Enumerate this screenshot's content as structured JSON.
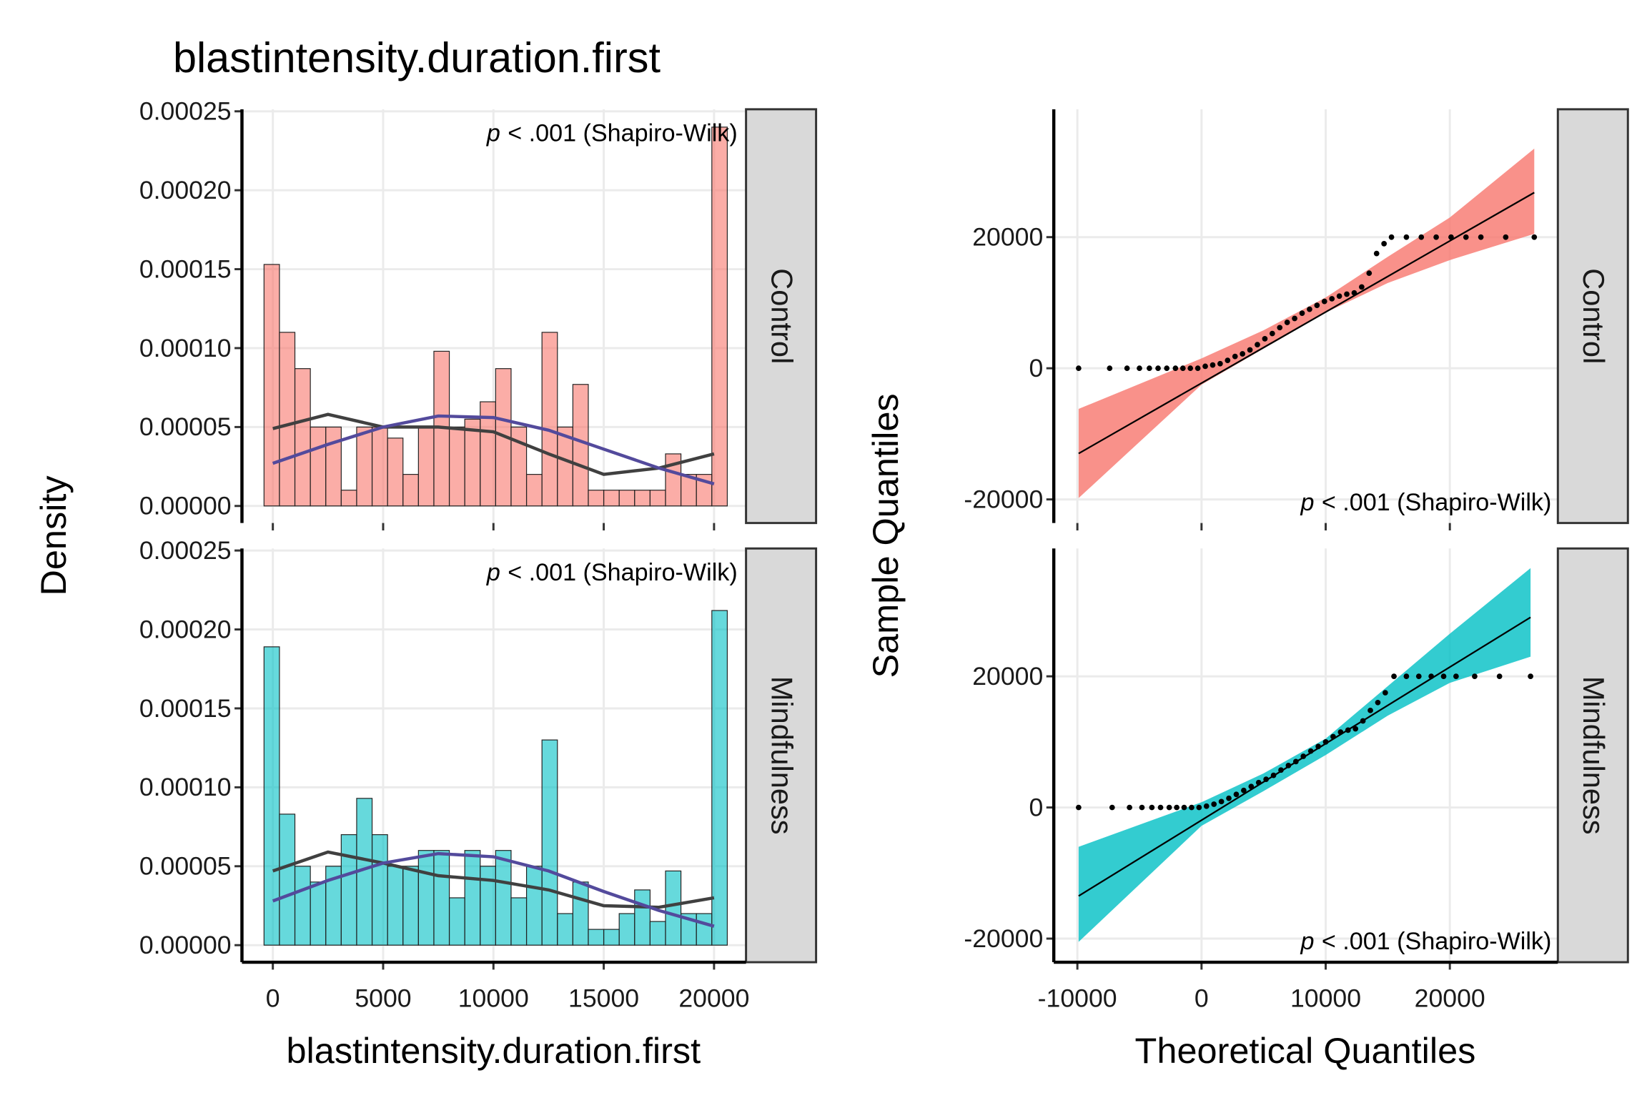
{
  "chart_data": [
    {
      "type": "histogram",
      "title": "blastintensity.duration.first",
      "x_label": "blastintensity.duration.first",
      "y_label": "Density",
      "xlim": [
        -1400,
        21450
      ],
      "xticks": [
        0,
        5000,
        10000,
        15000,
        20000
      ],
      "ylim": [
        -1.08e-05,
        0.0002513
      ],
      "yticks": [
        {
          "value": 0,
          "label": "0.00000"
        },
        {
          "value": 5e-05,
          "label": "0.00005"
        },
        {
          "value": 0.0001,
          "label": "0.00010"
        },
        {
          "value": 0.00015,
          "label": "0.00015"
        },
        {
          "value": 0.0002,
          "label": "0.00020"
        },
        {
          "value": 0.00025,
          "label": "0.00025"
        }
      ],
      "grid": true,
      "bins": [
        -400,
        300,
        1000,
        1700,
        2400,
        3100,
        3800,
        4500,
        5200,
        5900,
        6600,
        7300,
        8000,
        8700,
        9400,
        10100,
        10800,
        11500,
        12200,
        12900,
        13600,
        14300,
        15000,
        15700,
        16400,
        17100,
        17800,
        18500,
        19200,
        19900,
        20600
      ],
      "density_color": "#404040",
      "normal_color": "#534A9C",
      "panels": [
        {
          "label": "Control",
          "color": "#F8766D",
          "stat_symbol": "p",
          "annotation": "< .001 (Shapiro-Wilk)",
          "values": [
            0.000153,
            0.00011,
            8.7e-05,
            5e-05,
            5e-05,
            1e-05,
            5e-05,
            5e-05,
            4.3e-05,
            2e-05,
            5e-05,
            9.8e-05,
            5e-05,
            5.5e-05,
            6.6e-05,
            8.7e-05,
            5e-05,
            2e-05,
            0.00011,
            5e-05,
            7.7e-05,
            1e-05,
            1e-05,
            1e-05,
            1e-05,
            1e-05,
            3.3e-05,
            2e-05,
            2e-05,
            0.00024
          ],
          "curves_x": [
            0,
            2500,
            5000,
            7500,
            10000,
            12500,
            15000,
            17500,
            20000
          ],
          "density": [
            4.9e-05,
            5.8e-05,
            5e-05,
            5e-05,
            4.7e-05,
            3.3e-05,
            2e-05,
            2.4e-05,
            3.3e-05
          ],
          "normal": [
            2.7e-05,
            3.9e-05,
            5e-05,
            5.7e-05,
            5.6e-05,
            4.8e-05,
            3.6e-05,
            2.4e-05,
            1.4e-05
          ]
        },
        {
          "label": "Mindfulness",
          "color": "#00BFC4",
          "stat_symbol": "p",
          "annotation": "< .001 (Shapiro-Wilk)",
          "values": [
            0.000189,
            8.3e-05,
            5e-05,
            4e-05,
            5e-05,
            7e-05,
            9.3e-05,
            7e-05,
            5e-05,
            5e-05,
            6e-05,
            6e-05,
            3e-05,
            6e-05,
            5e-05,
            6e-05,
            3e-05,
            5e-05,
            0.00013,
            2e-05,
            4e-05,
            1e-05,
            1e-05,
            2e-05,
            3.5e-05,
            1.5e-05,
            4.7e-05,
            2e-05,
            2e-05,
            0.000212
          ],
          "curves_x": [
            0,
            2500,
            5000,
            7500,
            10000,
            12500,
            15000,
            17500,
            20000
          ],
          "density": [
            4.7e-05,
            5.9e-05,
            5.2e-05,
            4.4e-05,
            4.1e-05,
            3.5e-05,
            2.5e-05,
            2.4e-05,
            3e-05
          ],
          "normal": [
            2.8e-05,
            4.1e-05,
            5.2e-05,
            5.8e-05,
            5.6e-05,
            4.7e-05,
            3.4e-05,
            2.2e-05,
            1.2e-05
          ]
        }
      ]
    },
    {
      "type": "qq",
      "x_label": "Theoretical Quantiles",
      "y_label": "Sample Quantiles",
      "xlim": [
        -11900,
        28700
      ],
      "xticks": [
        -10000,
        0,
        10000,
        20000
      ],
      "ylim": [
        -23600,
        39500
      ],
      "yticks": [
        -20000,
        0,
        20000
      ],
      "grid": true,
      "point_color": "#000000",
      "line_color": "#000000",
      "panels": [
        {
          "label": "Control",
          "color": "#F8766D",
          "stat_symbol": "p",
          "annotation": "< .001 (Shapiro-Wilk)",
          "x": [
            -9900,
            -7400,
            -6000,
            -5000,
            -4200,
            -3500,
            -2800,
            -2100,
            -1500,
            -900,
            -300,
            300,
            900,
            1500,
            2100,
            2700,
            3300,
            3900,
            4500,
            5100,
            5700,
            6300,
            6900,
            7500,
            8100,
            8700,
            9300,
            9900,
            10500,
            11100,
            11700,
            12300,
            12900,
            13500,
            14100,
            14700,
            15300,
            16500,
            17700,
            18900,
            20100,
            21300,
            22500,
            24500,
            26800
          ],
          "values": [
            0,
            0,
            0,
            0,
            0,
            0,
            0,
            0,
            0,
            0,
            0,
            300,
            500,
            700,
            1200,
            1800,
            2200,
            2800,
            3600,
            4500,
            5300,
            6200,
            7000,
            7600,
            8400,
            9000,
            9600,
            10200,
            10600,
            11000,
            11300,
            11500,
            12400,
            14500,
            17500,
            19000,
            20000,
            20000,
            20000,
            20000,
            20000,
            20000,
            20000,
            20000,
            20000
          ],
          "band_x": [
            -9900,
            0,
            5000,
            10000,
            15000,
            20000,
            26800
          ],
          "band_lower": [
            -19800,
            -2500,
            3000,
            8500,
            13000,
            16500,
            20500
          ],
          "band_upper": [
            -6200,
            1500,
            5800,
            10800,
            17000,
            23000,
            33500
          ],
          "fit_x": [
            -9900,
            26800
          ],
          "fit_y": [
            -13000,
            26800
          ]
        },
        {
          "label": "Mindfulness",
          "color": "#00BFC4",
          "stat_symbol": "p",
          "annotation": "< .001 (Shapiro-Wilk)",
          "x": [
            -9900,
            -7200,
            -5800,
            -4800,
            -4000,
            -3300,
            -2600,
            -2000,
            -1400,
            -800,
            -200,
            400,
            1000,
            1600,
            2200,
            2800,
            3400,
            4000,
            4600,
            5200,
            5800,
            6400,
            7000,
            7600,
            8200,
            8800,
            9400,
            10000,
            10600,
            11200,
            11800,
            12400,
            13000,
            13600,
            14200,
            14800,
            15500,
            16500,
            17500,
            18500,
            19500,
            20500,
            22000,
            24000,
            26500
          ],
          "values": [
            0,
            0,
            0,
            0,
            0,
            0,
            0,
            0,
            0,
            0,
            0,
            200,
            500,
            900,
            1400,
            2000,
            2600,
            3200,
            3800,
            4300,
            4900,
            5700,
            6400,
            7000,
            7800,
            8600,
            9300,
            10000,
            10800,
            11500,
            11800,
            12000,
            13200,
            14800,
            16000,
            17500,
            20000,
            20000,
            20000,
            20000,
            20000,
            20000,
            20000,
            20000,
            20000
          ],
          "band_x": [
            -9900,
            0,
            5000,
            10000,
            15000,
            20000,
            26500
          ],
          "band_lower": [
            -20500,
            -2800,
            2500,
            8000,
            14000,
            19000,
            23000
          ],
          "band_upper": [
            -6000,
            800,
            5200,
            10500,
            18500,
            26500,
            36500
          ],
          "fit_x": [
            -9900,
            26500
          ],
          "fit_y": [
            -13500,
            29000
          ]
        }
      ]
    }
  ]
}
